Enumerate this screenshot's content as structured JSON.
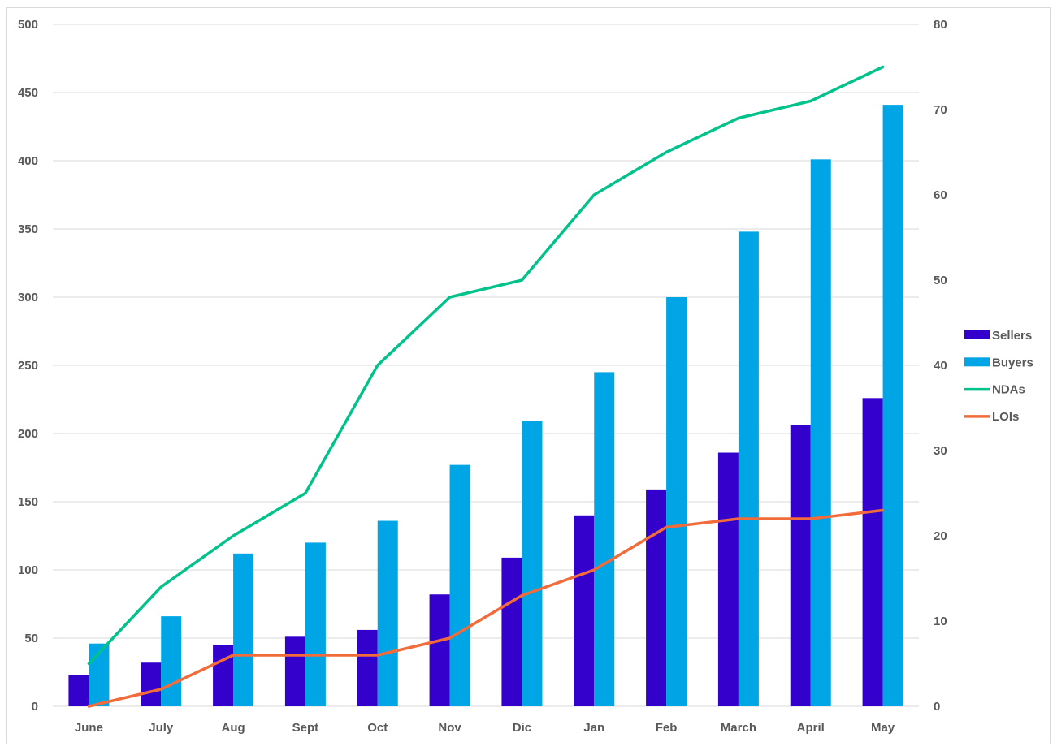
{
  "chart_data": {
    "type": "bar",
    "categories": [
      "June",
      "July",
      "Aug",
      "Sept",
      "Oct",
      "Nov",
      "Dic",
      "Jan",
      "Feb",
      "March",
      "April",
      "May"
    ],
    "series": [
      {
        "name": "Sellers",
        "kind": "bar",
        "axis": "left",
        "color": "#3300CC",
        "values": [
          23,
          32,
          45,
          51,
          56,
          82,
          109,
          140,
          159,
          186,
          206,
          226
        ]
      },
      {
        "name": "Buyers",
        "kind": "bar",
        "axis": "left",
        "color": "#00A5E6",
        "values": [
          46,
          66,
          112,
          120,
          136,
          177,
          209,
          245,
          300,
          348,
          401,
          441
        ]
      },
      {
        "name": "NDAs",
        "kind": "line",
        "axis": "right",
        "color": "#00C28A",
        "values": [
          5,
          14,
          20,
          25,
          40,
          48,
          50,
          60,
          65,
          69,
          71,
          75
        ]
      },
      {
        "name": "LOIs",
        "kind": "line",
        "axis": "right",
        "color": "#F26B3A",
        "values": [
          0,
          2,
          6,
          6,
          6,
          8,
          13,
          16,
          21,
          22,
          22,
          23
        ]
      }
    ],
    "y_left": {
      "min": 0,
      "max": 500,
      "ticks": [
        "0",
        "50",
        "100",
        "150",
        "200",
        "250",
        "300",
        "350",
        "400",
        "450",
        "500"
      ]
    },
    "y_right": {
      "min": 0,
      "max": 80,
      "ticks": [
        "0",
        "10",
        "20",
        "30",
        "40",
        "50",
        "60",
        "70",
        "80"
      ]
    },
    "title": "",
    "xlabel": "",
    "ylabel": "",
    "grid": true,
    "legend_position": "right",
    "colors": {
      "grid": "#d9d9d9",
      "axis_text": "#595959"
    }
  }
}
